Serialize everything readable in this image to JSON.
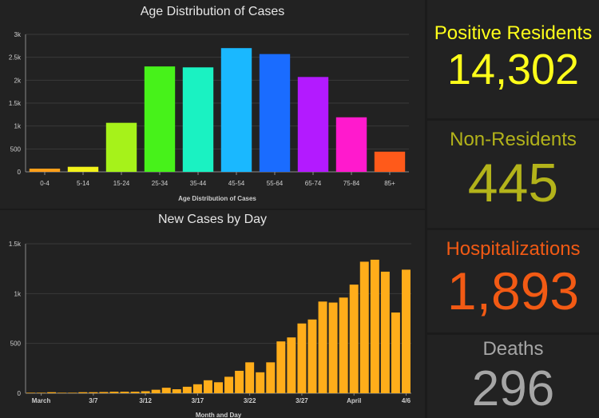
{
  "charts": [
    {
      "chart_data": {
        "type": "bar",
        "title": "Age Distribution of Cases",
        "xlabel": "Age Distribution of Cases",
        "ylabel": "",
        "ylim": [
          0,
          3000
        ],
        "yticks": [
          {
            "value": 0,
            "label": "0"
          },
          {
            "value": 500,
            "label": "500"
          },
          {
            "value": 1000,
            "label": "1k"
          },
          {
            "value": 1500,
            "label": "1.5k"
          },
          {
            "value": 2000,
            "label": "2k"
          },
          {
            "value": 2500,
            "label": "2.5k"
          },
          {
            "value": 3000,
            "label": "3k"
          }
        ],
        "categories": [
          "0-4",
          "5-14",
          "15-24",
          "25-34",
          "35-44",
          "45-54",
          "55-64",
          "65-74",
          "75-84",
          "85+"
        ],
        "values": [
          70,
          110,
          1070,
          2300,
          2280,
          2700,
          2570,
          2070,
          1190,
          440
        ],
        "colors": [
          "#ff9f1a",
          "#f2f21a",
          "#a6f21a",
          "#47f21a",
          "#1af2c2",
          "#1ab8ff",
          "#1a6cff",
          "#b31aff",
          "#ff1acd",
          "#ff5a1a"
        ],
        "grid": true,
        "legend": "none"
      }
    },
    {
      "chart_data": {
        "type": "bar",
        "title": "New Cases by Day",
        "xlabel": "Month and Day",
        "ylabel": "",
        "ylim": [
          0,
          1500
        ],
        "yticks": [
          {
            "value": 0,
            "label": "0"
          },
          {
            "value": 500,
            "label": "500"
          },
          {
            "value": 1000,
            "label": "1k"
          },
          {
            "value": 1500,
            "label": "1.5k"
          }
        ],
        "x": [
          "March 1",
          "March 2",
          "March 3",
          "March 4",
          "March 5",
          "March 6",
          "March 7",
          "March 8",
          "March 9",
          "March 10",
          "March 11",
          "March 12",
          "March 13",
          "March 14",
          "March 15",
          "March 16",
          "March 17",
          "March 18",
          "March 19",
          "March 20",
          "March 21",
          "March 22",
          "March 23",
          "March 24",
          "March 25",
          "March 26",
          "March 27",
          "March 28",
          "March 29",
          "March 30",
          "March 31",
          "April 1",
          "April 2",
          "April 3",
          "April 4",
          "April 5",
          "April 6"
        ],
        "values": [
          5,
          5,
          10,
          5,
          5,
          10,
          10,
          12,
          15,
          15,
          15,
          20,
          35,
          55,
          40,
          65,
          90,
          130,
          110,
          165,
          225,
          310,
          210,
          310,
          520,
          560,
          700,
          740,
          920,
          910,
          960,
          1090,
          1320,
          1340,
          1220,
          810,
          1240
        ],
        "bar_color": "#ffad1a",
        "xtick_labels": [
          {
            "index": 1,
            "label": "March"
          },
          {
            "index": 6,
            "label": "3/7"
          },
          {
            "index": 11,
            "label": "3/12"
          },
          {
            "index": 16,
            "label": "3/17"
          },
          {
            "index": 21,
            "label": "3/22"
          },
          {
            "index": 26,
            "label": "3/27"
          },
          {
            "index": 31,
            "label": "April"
          },
          {
            "index": 36,
            "label": "4/6"
          }
        ],
        "grid": true,
        "legend": "none"
      }
    }
  ],
  "stats": [
    {
      "label": "Positive Residents",
      "value": "14,302",
      "color": "#ffff1a"
    },
    {
      "label": "Non-Residents",
      "value": "445",
      "color": "#b3b31a"
    },
    {
      "label": "Hospitalizations",
      "value": "1,893",
      "color": "#f25a14"
    },
    {
      "label": "Deaths",
      "value": "296",
      "color": "#a6a6a6"
    }
  ]
}
